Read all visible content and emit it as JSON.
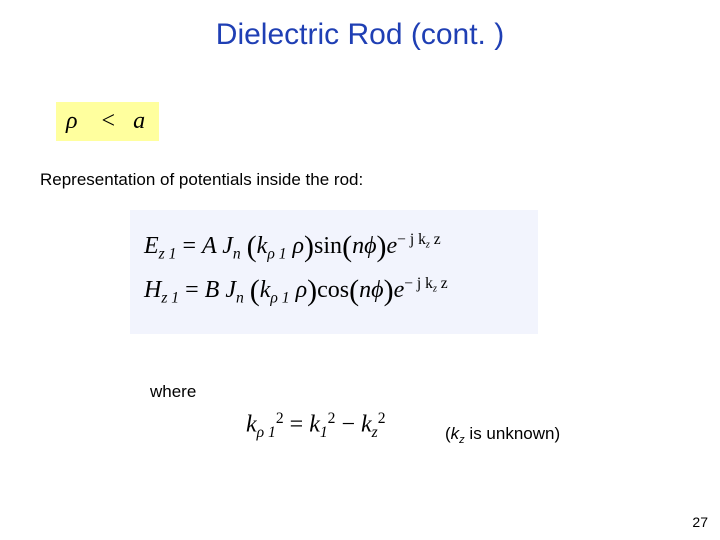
{
  "title": {
    "text": "Dielectric Rod (cont. )",
    "color": "#1f3fb4",
    "fontsize_pt": 30
  },
  "condition_box": {
    "background": "#ffff9e",
    "fontsize_pt": 24,
    "rho_glyph": "ρ",
    "less_than": "<",
    "rhs": "a"
  },
  "subtitle": {
    "text": "Representation of potentials inside the rod:",
    "fontsize_pt": 17
  },
  "equations_bg": "#f2f4fd",
  "eq1": {
    "lhs_E": "E",
    "lhs_sub": "z 1",
    "eq": " = ",
    "A": "A J",
    "Jsub": "n",
    "open": "(",
    "k": "k",
    "k_sub": "ρ 1",
    "rho": " ρ",
    "close": ")",
    "sin": "sin",
    "n": "n",
    "phi": "ϕ",
    "e": "e",
    "exp_pre": "− j k",
    "exp_sub": "z",
    "exp_z": " z"
  },
  "eq2": {
    "lhs_H": "H",
    "lhs_sub": "z 1",
    "eq": " = ",
    "B": "B J",
    "Jsub": "n",
    "open": "(",
    "k": "k",
    "k_sub": "ρ 1",
    "rho": " ρ",
    "close": ")",
    "cos": "cos",
    "n": "n",
    "phi": "ϕ",
    "e": "e",
    "exp_pre": "− j k",
    "exp_sub": "z",
    "exp_z": " z"
  },
  "where_label": "where",
  "eq_k": {
    "k1": "k",
    "sub1": "ρ 1",
    "sq": "2",
    "eq": " = ",
    "k2": "k",
    "sub2": "1",
    "minus": " − ",
    "k3": "k",
    "sub3": "z"
  },
  "unknown_note": {
    "open": "(",
    "k": "k",
    "sub": "z",
    "rest": " is unknown)"
  },
  "page_number": "27"
}
